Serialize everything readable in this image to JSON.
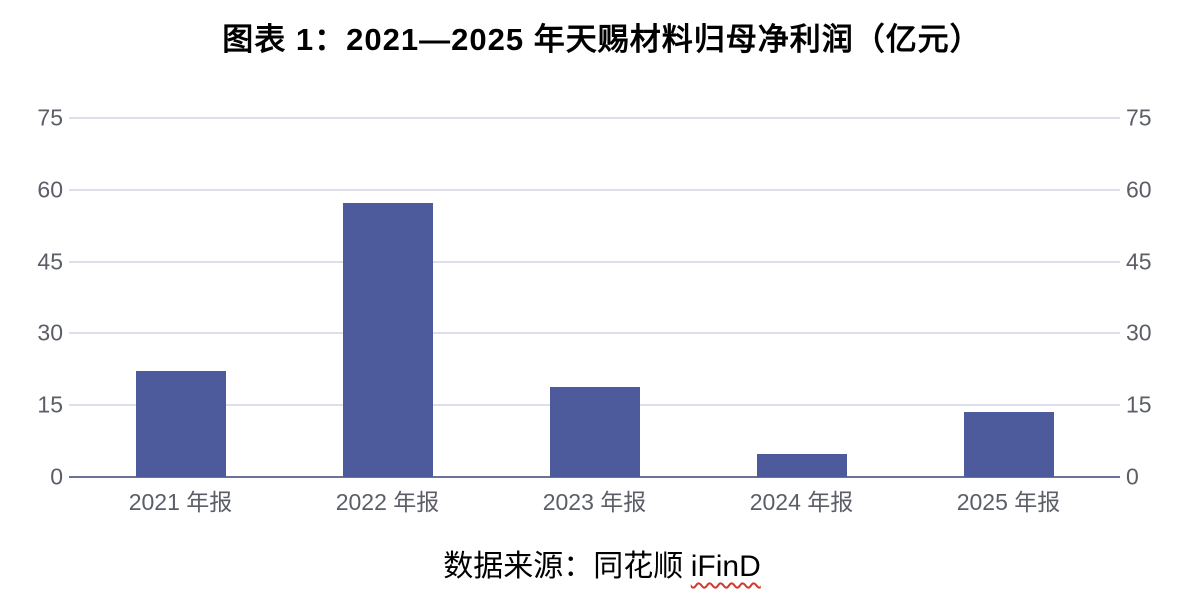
{
  "page": {
    "title": "图表 1：2021—2025 年天赐材料归母净利润（亿元）",
    "source_prefix": "数据来源：同花顺 ",
    "source_product": "iFinD"
  },
  "chart_data": {
    "type": "bar",
    "title": "图表 1：2021—2025 年天赐材料归母净利润（亿元）",
    "unit": "亿元",
    "categories": [
      "2021 年报",
      "2022 年报",
      "2023 年报",
      "2024 年报",
      "2025 年报"
    ],
    "values": [
      22.1,
      57.2,
      18.9,
      4.8,
      13.6
    ],
    "ylim": [
      0,
      75
    ],
    "yticks": [
      0,
      15,
      30,
      45,
      60,
      75
    ],
    "y_axis_sides": [
      "left",
      "right"
    ],
    "grid": true,
    "legend": false,
    "colors": {
      "bar": "#4d5a9b",
      "gridline": "#dde0ea",
      "axis_line": "#6a7396",
      "tick_label": "#5b5e66",
      "title_text": "#000000",
      "source_text": "#000000",
      "squiggle": "#d03b2f"
    }
  }
}
